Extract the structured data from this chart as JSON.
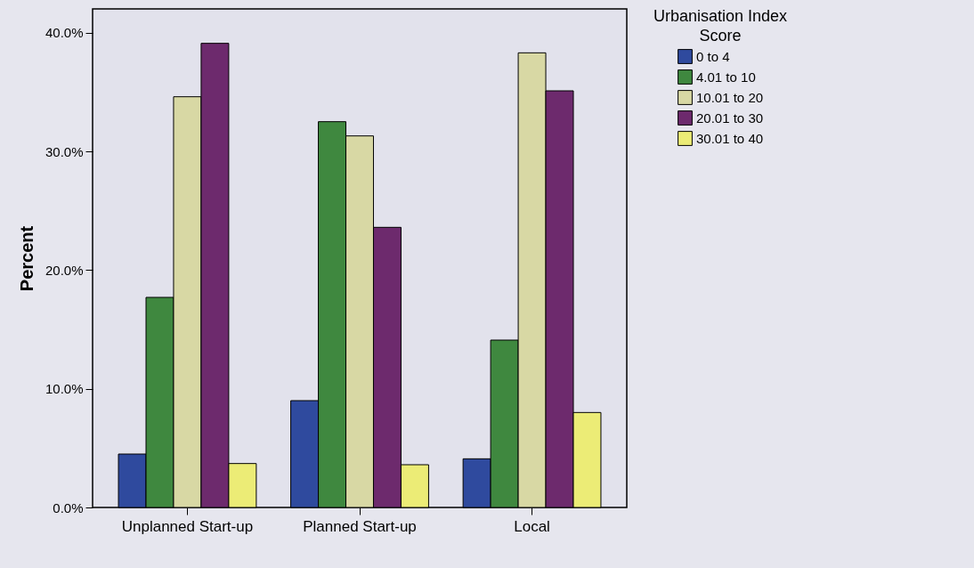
{
  "chart_data": {
    "type": "bar",
    "ylabel": "Percent",
    "legend_title": "Urbanisation Index Score",
    "legend": "top right",
    "grid": false,
    "categories": [
      "Unplanned Start-up",
      "Planned Start-up",
      "Local"
    ],
    "series": [
      {
        "name": "0 to 4",
        "color": "#2f4a9e",
        "values": [
          4.5,
          9.0,
          4.1
        ]
      },
      {
        "name": "4.01 to 10",
        "color": "#3f883f",
        "values": [
          17.7,
          32.5,
          14.1
        ]
      },
      {
        "name": "10.01 to 20",
        "color": "#d8d8a4",
        "values": [
          34.6,
          31.3,
          38.3
        ]
      },
      {
        "name": "20.01 to 30",
        "color": "#6d2a6d",
        "values": [
          39.1,
          23.6,
          35.1
        ]
      },
      {
        "name": "30.01 to 40",
        "color": "#ecec76",
        "values": [
          3.7,
          3.6,
          8.0
        ]
      }
    ],
    "ylim": [
      0,
      42
    ],
    "yticks": [
      {
        "value": 0,
        "label": "0.0%"
      },
      {
        "value": 10,
        "label": "10.0%"
      },
      {
        "value": 20,
        "label": "20.0%"
      },
      {
        "value": 30,
        "label": "30.0%"
      },
      {
        "value": 40,
        "label": "40.0%"
      }
    ]
  }
}
